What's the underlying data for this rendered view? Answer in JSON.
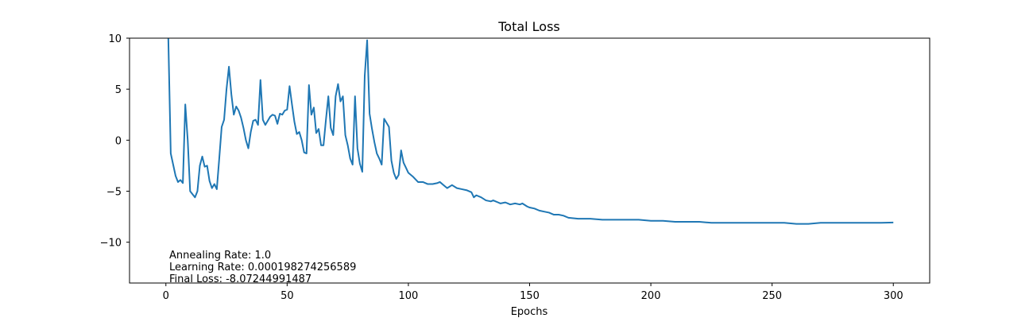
{
  "chart_data": {
    "type": "line",
    "title": "Total Loss",
    "xlabel": "Epochs",
    "ylabel": "",
    "xlim": [
      -15,
      315
    ],
    "ylim": [
      -14,
      10
    ],
    "xticks": [
      0,
      50,
      100,
      150,
      200,
      250,
      300
    ],
    "yticks": [
      10,
      5,
      0,
      -5,
      -10
    ],
    "ytick_labels": [
      "10",
      "5",
      "0",
      "−5",
      "−10"
    ],
    "grid": false,
    "annotations": [
      "Annealing Rate: 1.0",
      "Learning Rate: 0.000198274256589",
      "Final Loss: -8.07244991487"
    ],
    "series": [
      {
        "color": "#1f77b4",
        "points": [
          [
            1,
            10
          ],
          [
            2,
            -1.3
          ],
          [
            3,
            -2.4
          ],
          [
            4,
            -3.5
          ],
          [
            5,
            -4.1
          ],
          [
            6,
            -3.9
          ],
          [
            7,
            -4.2
          ],
          [
            8,
            3.5
          ],
          [
            9,
            0
          ],
          [
            10,
            -5.0
          ],
          [
            11,
            -5.3
          ],
          [
            12,
            -5.6
          ],
          [
            13,
            -5.0
          ],
          [
            14,
            -2.5
          ],
          [
            15,
            -1.6
          ],
          [
            16,
            -2.6
          ],
          [
            17,
            -2.5
          ],
          [
            18,
            -4.0
          ],
          [
            19,
            -4.7
          ],
          [
            20,
            -4.3
          ],
          [
            21,
            -4.8
          ],
          [
            22,
            -1.8
          ],
          [
            23,
            1.3
          ],
          [
            24,
            2.0
          ],
          [
            25,
            5.0
          ],
          [
            26,
            7.2
          ],
          [
            27,
            4.5
          ],
          [
            28,
            2.5
          ],
          [
            29,
            3.3
          ],
          [
            30,
            2.9
          ],
          [
            31,
            2.2
          ],
          [
            32,
            1.2
          ],
          [
            33,
            0.0
          ],
          [
            34,
            -0.8
          ],
          [
            35,
            0.8
          ],
          [
            36,
            1.9
          ],
          [
            37,
            2.0
          ],
          [
            38,
            1.5
          ],
          [
            39,
            5.9
          ],
          [
            40,
            2.0
          ],
          [
            41,
            1.5
          ],
          [
            42,
            1.9
          ],
          [
            43,
            2.3
          ],
          [
            44,
            2.5
          ],
          [
            45,
            2.4
          ],
          [
            46,
            1.6
          ],
          [
            47,
            2.6
          ],
          [
            48,
            2.5
          ],
          [
            49,
            2.9
          ],
          [
            50,
            3.0
          ],
          [
            51,
            5.3
          ],
          [
            52,
            3.5
          ],
          [
            53,
            1.8
          ],
          [
            54,
            0.6
          ],
          [
            55,
            0.8
          ],
          [
            56,
            0.0
          ],
          [
            57,
            -1.2
          ],
          [
            58,
            -1.3
          ],
          [
            59,
            5.4
          ],
          [
            60,
            2.5
          ],
          [
            61,
            3.2
          ],
          [
            62,
            0.7
          ],
          [
            63,
            1.1
          ],
          [
            64,
            -0.5
          ],
          [
            65,
            -0.5
          ],
          [
            66,
            2.0
          ],
          [
            67,
            4.3
          ],
          [
            68,
            1.2
          ],
          [
            69,
            0.5
          ],
          [
            70,
            4.3
          ],
          [
            71,
            5.5
          ],
          [
            72,
            3.8
          ],
          [
            73,
            4.3
          ],
          [
            74,
            0.5
          ],
          [
            75,
            -0.5
          ],
          [
            76,
            -1.8
          ],
          [
            77,
            -2.4
          ],
          [
            78,
            4.3
          ],
          [
            79,
            -0.8
          ],
          [
            80,
            -2.3
          ],
          [
            81,
            -3.1
          ],
          [
            82,
            6.3
          ],
          [
            83,
            9.8
          ],
          [
            84,
            2.6
          ],
          [
            85,
            1.1
          ],
          [
            86,
            -0.2
          ],
          [
            87,
            -1.3
          ],
          [
            88,
            -1.8
          ],
          [
            89,
            -2.4
          ],
          [
            90,
            2.1
          ],
          [
            91,
            1.7
          ],
          [
            92,
            1.3
          ],
          [
            93,
            -2.0
          ],
          [
            94,
            -3.2
          ],
          [
            95,
            -3.8
          ],
          [
            96,
            -3.4
          ],
          [
            97,
            -1.0
          ],
          [
            98,
            -2.2
          ],
          [
            99,
            -2.7
          ],
          [
            100,
            -3.2
          ],
          [
            102,
            -3.6
          ],
          [
            104,
            -4.1
          ],
          [
            106,
            -4.1
          ],
          [
            108,
            -4.3
          ],
          [
            110,
            -4.3
          ],
          [
            112,
            -4.2
          ],
          [
            113,
            -4.1
          ],
          [
            115,
            -4.5
          ],
          [
            116,
            -4.7
          ],
          [
            118,
            -4.4
          ],
          [
            120,
            -4.7
          ],
          [
            122,
            -4.8
          ],
          [
            124,
            -4.9
          ],
          [
            126,
            -5.1
          ],
          [
            127,
            -5.6
          ],
          [
            128,
            -5.4
          ],
          [
            130,
            -5.6
          ],
          [
            132,
            -5.9
          ],
          [
            134,
            -6.0
          ],
          [
            135,
            -5.9
          ],
          [
            137,
            -6.1
          ],
          [
            138,
            -6.2
          ],
          [
            140,
            -6.1
          ],
          [
            142,
            -6.3
          ],
          [
            144,
            -6.2
          ],
          [
            146,
            -6.3
          ],
          [
            147,
            -6.2
          ],
          [
            149,
            -6.5
          ],
          [
            150,
            -6.6
          ],
          [
            152,
            -6.7
          ],
          [
            154,
            -6.9
          ],
          [
            156,
            -7.0
          ],
          [
            158,
            -7.1
          ],
          [
            160,
            -7.3
          ],
          [
            162,
            -7.3
          ],
          [
            164,
            -7.4
          ],
          [
            166,
            -7.6
          ],
          [
            170,
            -7.7
          ],
          [
            175,
            -7.7
          ],
          [
            180,
            -7.8
          ],
          [
            185,
            -7.8
          ],
          [
            190,
            -7.8
          ],
          [
            195,
            -7.8
          ],
          [
            200,
            -7.9
          ],
          [
            205,
            -7.9
          ],
          [
            210,
            -8.0
          ],
          [
            215,
            -8.0
          ],
          [
            220,
            -8.0
          ],
          [
            225,
            -8.1
          ],
          [
            230,
            -8.1
          ],
          [
            235,
            -8.1
          ],
          [
            240,
            -8.1
          ],
          [
            245,
            -8.1
          ],
          [
            250,
            -8.1
          ],
          [
            255,
            -8.1
          ],
          [
            260,
            -8.2
          ],
          [
            265,
            -8.2
          ],
          [
            270,
            -8.1
          ],
          [
            275,
            -8.1
          ],
          [
            280,
            -8.1
          ],
          [
            285,
            -8.1
          ],
          [
            290,
            -8.1
          ],
          [
            295,
            -8.1
          ],
          [
            300,
            -8.07
          ]
        ]
      }
    ]
  }
}
